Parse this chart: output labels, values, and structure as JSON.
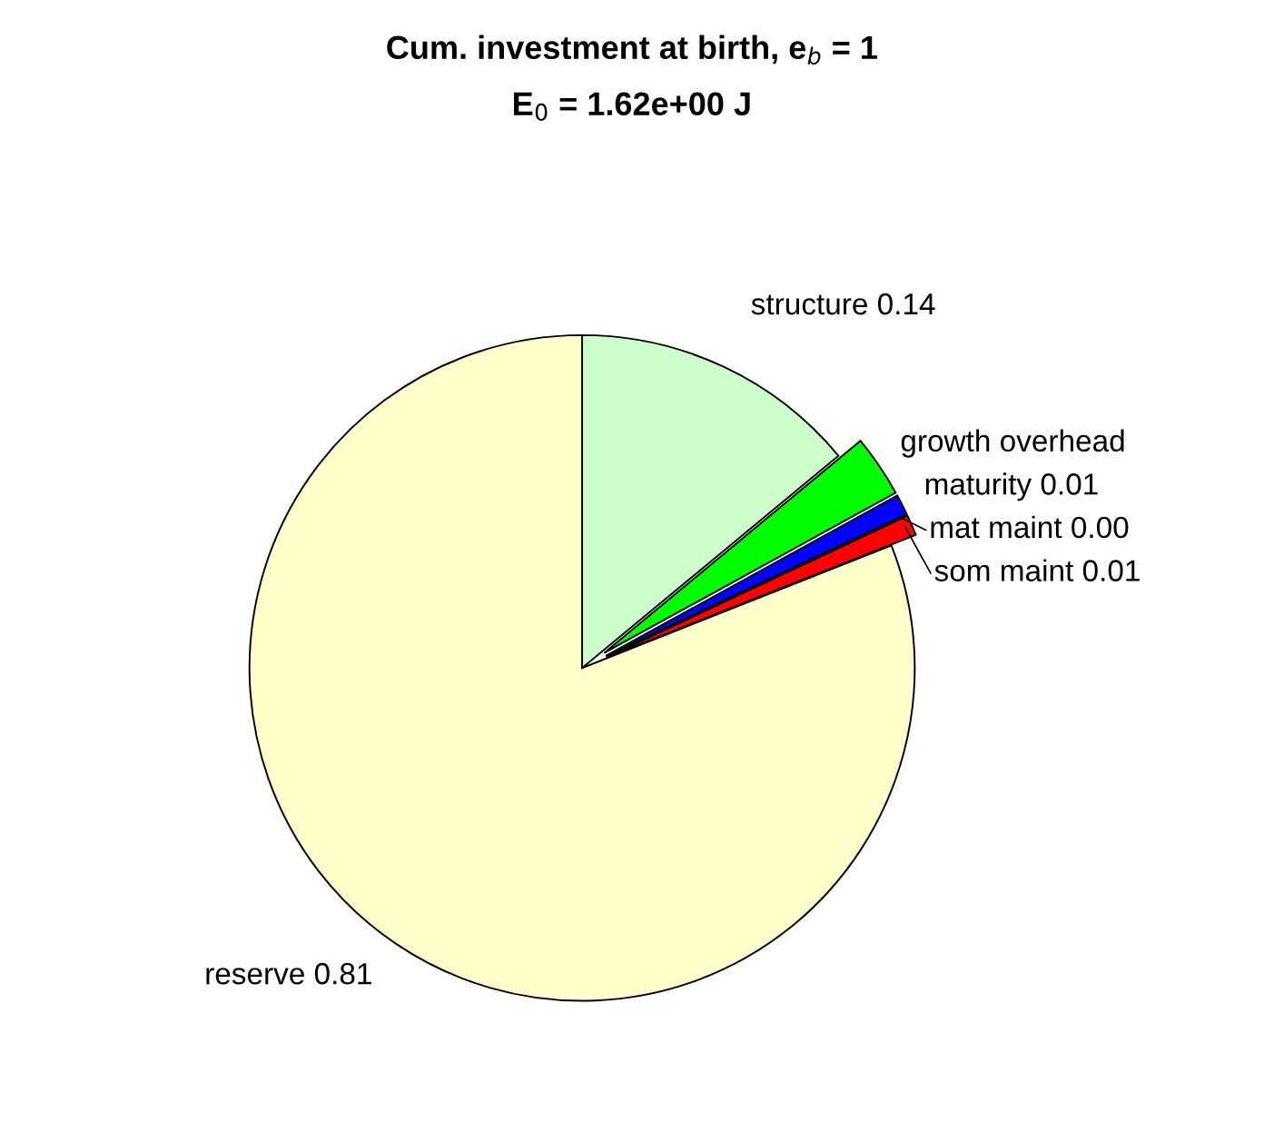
{
  "chart_data": {
    "type": "pie",
    "title": "Cum. investment at birth, e$_{b}$ = 1",
    "subtitle": "E$_{0}$ = 1.62e+00 J",
    "categories": [
      "structure",
      "growth overhead",
      "maturity",
      "mat maint",
      "som maint",
      "reserve"
    ],
    "values": [
      0.14,
      0.03,
      0.01,
      0.0,
      0.01,
      0.81
    ],
    "value_labels": [
      "0.14",
      null,
      "0.01",
      "0.00",
      "0.01",
      "0.81"
    ],
    "colors": [
      "#ccffcc",
      "#00ff00",
      "#0000ff",
      "#ff00ff",
      "#ff0000",
      "#ffffcc"
    ],
    "legend": false
  }
}
